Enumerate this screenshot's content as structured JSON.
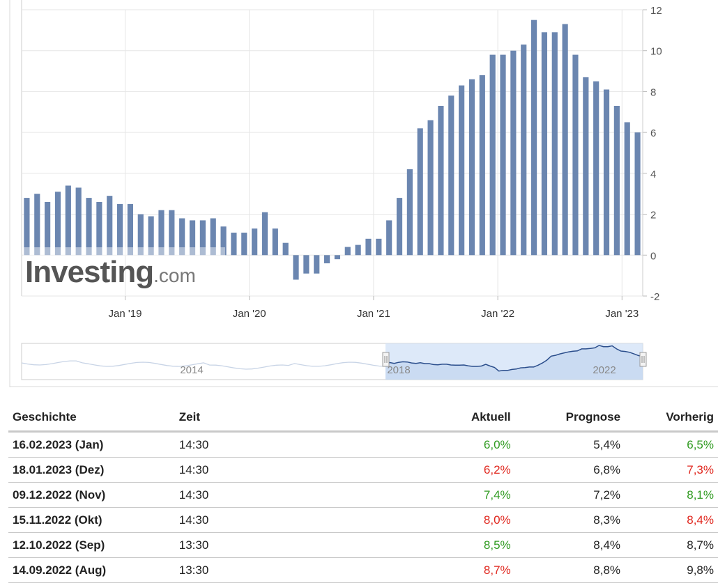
{
  "chart_data": {
    "type": "bar",
    "color": "#6b86b0",
    "y_axis_position": "right",
    "yticks": [
      -2,
      0,
      2,
      4,
      6,
      8,
      10,
      12
    ],
    "ylim": [
      -2,
      12
    ],
    "xticks": [
      {
        "label": "Jan '19",
        "index": 10
      },
      {
        "label": "Jan '20",
        "index": 22
      },
      {
        "label": "Jan '21",
        "index": 34
      },
      {
        "label": "Jan '22",
        "index": 46
      },
      {
        "label": "Jan '23",
        "index": 58
      }
    ],
    "values": [
      2.8,
      3.0,
      2.6,
      3.1,
      3.4,
      3.3,
      2.8,
      2.6,
      2.9,
      2.5,
      2.5,
      2.0,
      1.9,
      2.2,
      2.2,
      1.8,
      1.7,
      1.7,
      1.8,
      1.4,
      1.1,
      1.1,
      1.3,
      2.1,
      1.3,
      0.6,
      -1.2,
      -0.9,
      -0.9,
      -0.4,
      -0.2,
      0.4,
      0.5,
      0.8,
      0.8,
      1.7,
      2.8,
      4.2,
      6.2,
      6.6,
      7.3,
      7.8,
      8.3,
      8.6,
      8.8,
      9.8,
      9.8,
      10.0,
      10.3,
      11.5,
      10.9,
      10.9,
      11.3,
      9.8,
      8.7,
      8.5,
      8.1,
      7.3,
      6.5,
      6.0
    ],
    "navigator": {
      "labels": [
        "2014",
        "2018",
        "2022"
      ],
      "selected_range_color": "#d5e3f7"
    }
  },
  "logo": {
    "main": "Investing",
    "tld": ".com"
  },
  "table": {
    "headers": {
      "date": "Geschichte",
      "time": "Zeit",
      "actual": "Aktuell",
      "forecast": "Prognose",
      "previous": "Vorherig"
    },
    "rows": [
      {
        "date": "16.02.2023 (Jan)",
        "time": "14:30",
        "actual": "6,0%",
        "actual_color": "#2e9a1f",
        "forecast": "5,4%",
        "previous": "6,5%",
        "previous_color": "#2e9a1f"
      },
      {
        "date": "18.01.2023 (Dez)",
        "time": "14:30",
        "actual": "6,2%",
        "actual_color": "#e0261d",
        "forecast": "6,8%",
        "previous": "7,3%",
        "previous_color": "#e0261d"
      },
      {
        "date": "09.12.2022 (Nov)",
        "time": "14:30",
        "actual": "7,4%",
        "actual_color": "#2e9a1f",
        "forecast": "7,2%",
        "previous": "8,1%",
        "previous_color": "#2e9a1f"
      },
      {
        "date": "15.11.2022 (Okt)",
        "time": "14:30",
        "actual": "8,0%",
        "actual_color": "#e0261d",
        "forecast": "8,3%",
        "previous": "8,4%",
        "previous_color": "#e0261d"
      },
      {
        "date": "12.10.2022 (Sep)",
        "time": "13:30",
        "actual": "8,5%",
        "actual_color": "#2e9a1f",
        "forecast": "8,4%",
        "previous": "8,7%",
        "previous_color": "#222222"
      },
      {
        "date": "14.09.2022 (Aug)",
        "time": "13:30",
        "actual": "8,7%",
        "actual_color": "#e0261d",
        "forecast": "8,8%",
        "previous": "9,8%",
        "previous_color": "#222222"
      }
    ]
  }
}
